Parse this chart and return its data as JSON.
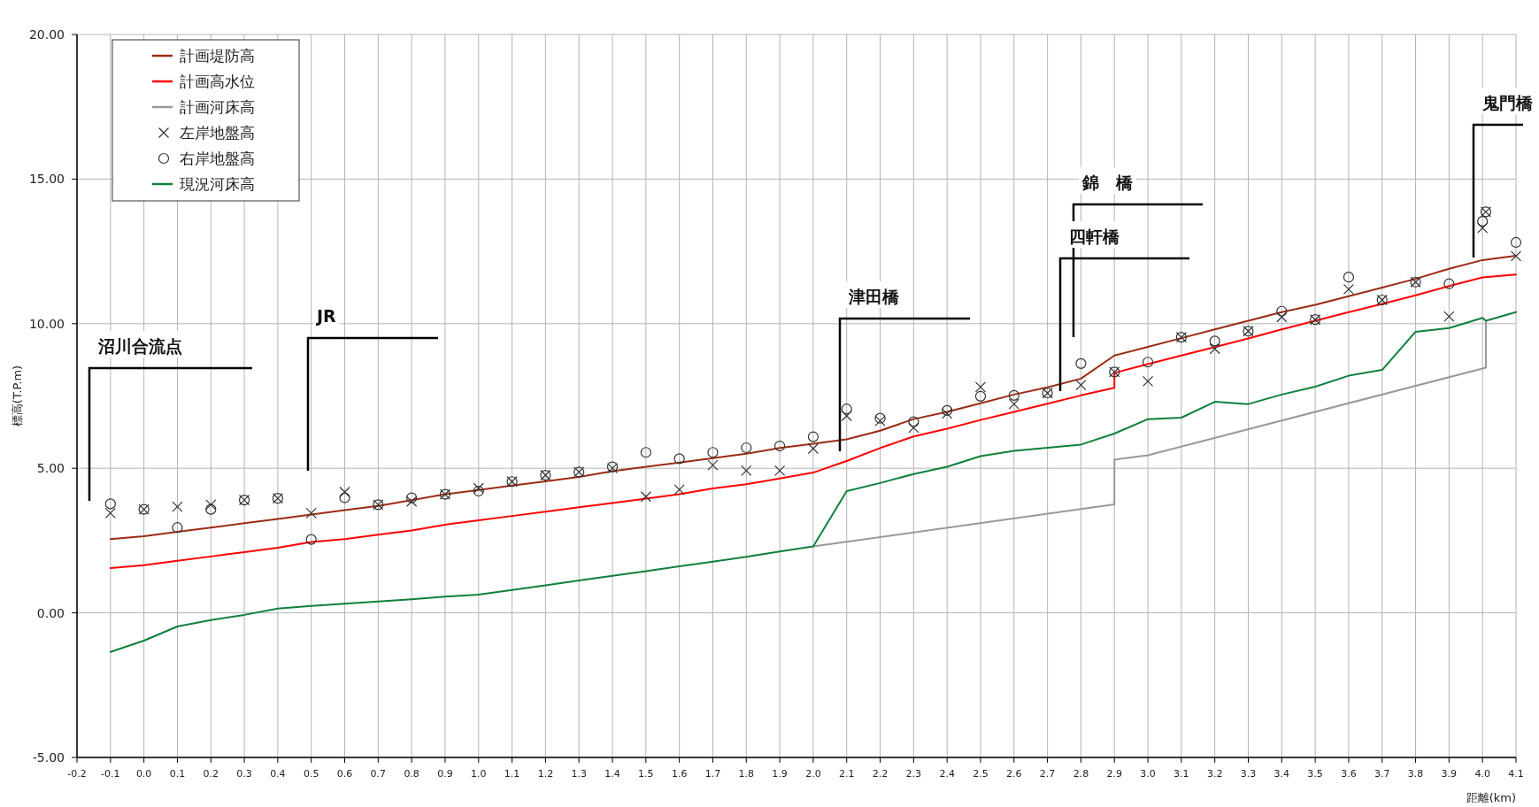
{
  "chart_data": {
    "type": "line",
    "xlabel": "距離(km)",
    "ylabel": "標高(T.P.m)",
    "xlim": [
      -0.2,
      4.1
    ],
    "ylim": [
      -5,
      20
    ],
    "xticks": [
      {
        "value": -0.2,
        "label": "-0.2"
      },
      {
        "value": -0.1,
        "label": "-0.1"
      },
      {
        "value": 0,
        "label": "0.0"
      },
      {
        "value": 0.1,
        "label": "0.1"
      },
      {
        "value": 0.2,
        "label": "0.2"
      },
      {
        "value": 0.3,
        "label": "0.3"
      },
      {
        "value": 0.4,
        "label": "0.4"
      },
      {
        "value": 0.5,
        "label": "0.5"
      },
      {
        "value": 0.6,
        "label": "0.6"
      },
      {
        "value": 0.7,
        "label": "0.7"
      },
      {
        "value": 0.8,
        "label": "0.8"
      },
      {
        "value": 0.9,
        "label": "0.9"
      },
      {
        "value": 1,
        "label": "1.0"
      },
      {
        "value": 1.1,
        "label": "1.1"
      },
      {
        "value": 1.2,
        "label": "1.2"
      },
      {
        "value": 1.3,
        "label": "1.3"
      },
      {
        "value": 1.4,
        "label": "1.4"
      },
      {
        "value": 1.5,
        "label": "1.5"
      },
      {
        "value": 1.6,
        "label": "1.6"
      },
      {
        "value": 1.7,
        "label": "1.7"
      },
      {
        "value": 1.8,
        "label": "1.8"
      },
      {
        "value": 1.9,
        "label": "1.9"
      },
      {
        "value": 2,
        "label": "2.0"
      },
      {
        "value": 2.1,
        "label": "2.1"
      },
      {
        "value": 2.2,
        "label": "2.2"
      },
      {
        "value": 2.3,
        "label": "2.3"
      },
      {
        "value": 2.4,
        "label": "2.4"
      },
      {
        "value": 2.5,
        "label": "2.5"
      },
      {
        "value": 2.6,
        "label": "2.6"
      },
      {
        "value": 2.7,
        "label": "2.7"
      },
      {
        "value": 2.8,
        "label": "2.8"
      },
      {
        "value": 2.9,
        "label": "2.9"
      },
      {
        "value": 3,
        "label": "3.0"
      },
      {
        "value": 3.1,
        "label": "3.1"
      },
      {
        "value": 3.2,
        "label": "3.2"
      },
      {
        "value": 3.3,
        "label": "3.3"
      },
      {
        "value": 3.4,
        "label": "3.4"
      },
      {
        "value": 3.5,
        "label": "3.5"
      },
      {
        "value": 3.6,
        "label": "3.6"
      },
      {
        "value": 3.7,
        "label": "3.7"
      },
      {
        "value": 3.8,
        "label": "3.8"
      },
      {
        "value": 3.9,
        "label": "3.9"
      },
      {
        "value": 4,
        "label": "4.0"
      },
      {
        "value": 4.1,
        "label": "4.1"
      }
    ],
    "yticks": [
      {
        "value": -5,
        "label": "-5.00"
      },
      {
        "value": 0,
        "label": "0.00"
      },
      {
        "value": 5,
        "label": "5.00"
      },
      {
        "value": 10,
        "label": "10.00"
      },
      {
        "value": 15,
        "label": "15.00"
      },
      {
        "value": 20,
        "label": "20.00"
      }
    ],
    "grid": true,
    "legend": "top left",
    "series": [
      {
        "name": "計画堤防高",
        "color": "#9b2c14",
        "marker": "none",
        "x": [
          -0.1,
          0,
          0.1,
          0.2,
          0.3,
          0.4,
          0.5,
          0.6,
          0.7,
          0.8,
          0.9,
          1,
          1.1,
          1.2,
          1.3,
          1.4,
          1.5,
          1.6,
          1.7,
          1.8,
          1.9,
          2,
          2.1,
          2.2,
          2.3,
          2.4,
          2.5,
          2.6,
          2.7,
          2.8,
          2.9,
          3,
          3.1,
          3.2,
          3.3,
          3.4,
          3.5,
          3.6,
          3.7,
          3.8,
          3.9,
          4,
          4.1
        ],
        "values": [
          2.55,
          2.65,
          2.8,
          2.95,
          3.1,
          3.25,
          3.4,
          3.55,
          3.7,
          3.9,
          4.1,
          4.25,
          4.4,
          4.55,
          4.7,
          4.9,
          5.05,
          5.2,
          5.35,
          5.5,
          5.7,
          5.85,
          6.0,
          6.3,
          6.7,
          6.95,
          7.25,
          7.55,
          7.8,
          8.1,
          8.9,
          9.2,
          9.5,
          9.8,
          10.1,
          10.4,
          10.65,
          10.95,
          11.25,
          11.55,
          11.9,
          12.2,
          12.35
        ]
      },
      {
        "name": "計画高水位",
        "color": "#ff0000",
        "marker": "none",
        "x": [
          -0.1,
          0,
          0.1,
          0.2,
          0.3,
          0.4,
          0.5,
          0.6,
          0.7,
          0.8,
          0.9,
          1,
          1.1,
          1.2,
          1.3,
          1.4,
          1.5,
          1.6,
          1.7,
          1.8,
          1.9,
          2,
          2.1,
          2.2,
          2.3,
          2.4,
          2.5,
          2.6,
          2.7,
          2.8,
          2.9,
          2.9,
          3,
          3.1,
          3.2,
          3.3,
          3.4,
          3.5,
          3.6,
          3.7,
          3.8,
          3.9,
          4,
          4.1
        ],
        "values": [
          1.55,
          1.65,
          1.8,
          1.95,
          2.1,
          2.25,
          2.45,
          2.55,
          2.7,
          2.85,
          3.05,
          3.2,
          3.35,
          3.5,
          3.65,
          3.8,
          3.95,
          4.1,
          4.3,
          4.45,
          4.65,
          4.85,
          5.25,
          5.7,
          6.1,
          6.37,
          6.67,
          6.95,
          7.23,
          7.52,
          7.78,
          8.3,
          8.6,
          8.9,
          9.19,
          9.49,
          9.8,
          10.1,
          10.4,
          10.68,
          10.98,
          11.3,
          11.6,
          11.7
        ]
      },
      {
        "name": "計画河床高",
        "color": "#999999",
        "marker": "none",
        "x": [
          2,
          2.9,
          2.9,
          3,
          4.01,
          4.01
        ],
        "values": [
          2.3,
          3.75,
          5.3,
          5.45,
          8.48,
          10.1
        ]
      },
      {
        "name": "左岸地盤高",
        "type": "scatter",
        "color": "#333333",
        "marker": "cross",
        "x": [
          -0.1,
          0,
          0.1,
          0.2,
          0.3,
          0.4,
          0.5,
          0.6,
          0.7,
          0.8,
          0.9,
          1,
          1.1,
          1.2,
          1.3,
          1.4,
          1.5,
          1.6,
          1.7,
          1.8,
          1.9,
          2,
          2.1,
          2.2,
          2.3,
          2.4,
          2.5,
          2.6,
          2.7,
          2.8,
          2.9,
          3,
          3.1,
          3.2,
          3.3,
          3.4,
          3.5,
          3.6,
          3.7,
          3.8,
          3.9,
          4,
          4.01,
          4.1
        ],
        "values": [
          3.45,
          3.58,
          3.67,
          3.74,
          3.9,
          3.96,
          3.45,
          4.18,
          3.74,
          3.85,
          4.1,
          4.31,
          4.54,
          4.76,
          4.87,
          5.0,
          4.02,
          4.26,
          5.11,
          4.92,
          4.92,
          5.68,
          6.81,
          6.64,
          6.4,
          6.89,
          7.81,
          7.22,
          7.6,
          7.88,
          8.33,
          8.01,
          9.53,
          9.13,
          9.74,
          10.23,
          10.14,
          11.19,
          10.82,
          11.44,
          10.25,
          13.31,
          13.87,
          12.34
        ]
      },
      {
        "name": "右岸地盤高",
        "type": "scatter",
        "color": "#333333",
        "marker": "circle",
        "x": [
          -0.1,
          0,
          0.1,
          0.2,
          0.3,
          0.4,
          0.5,
          0.6,
          0.7,
          0.8,
          0.9,
          1,
          1.1,
          1.2,
          1.3,
          1.4,
          1.5,
          1.6,
          1.7,
          1.8,
          1.9,
          2,
          2.1,
          2.2,
          2.3,
          2.4,
          2.5,
          2.6,
          2.7,
          2.8,
          2.9,
          3,
          3.1,
          3.2,
          3.3,
          3.4,
          3.5,
          3.6,
          3.7,
          3.8,
          3.9,
          4,
          4.01,
          4.1
        ],
        "values": [
          3.77,
          3.58,
          2.95,
          3.58,
          3.9,
          3.96,
          2.54,
          3.98,
          3.74,
          3.98,
          4.1,
          4.21,
          4.54,
          4.76,
          4.87,
          5.05,
          5.55,
          5.33,
          5.55,
          5.71,
          5.77,
          6.09,
          7.05,
          6.73,
          6.61,
          7.0,
          7.49,
          7.52,
          7.6,
          8.62,
          8.33,
          8.67,
          9.53,
          9.4,
          9.74,
          10.43,
          10.14,
          11.61,
          10.82,
          11.44,
          11.38,
          13.54,
          13.87,
          12.81
        ]
      },
      {
        "name": "現況河床高",
        "color": "#10803c",
        "marker": "none",
        "x": [
          -0.1,
          0,
          0.1,
          0.2,
          0.3,
          0.4,
          0.5,
          0.6,
          0.7,
          0.8,
          0.9,
          1,
          1.1,
          1.2,
          1.3,
          1.4,
          1.5,
          1.6,
          1.7,
          1.8,
          1.9,
          2,
          2.1,
          2.2,
          2.3,
          2.4,
          2.5,
          2.6,
          2.7,
          2.8,
          2.9,
          3,
          3.1,
          3.2,
          3.3,
          3.4,
          3.5,
          3.6,
          3.7,
          3.8,
          3.9,
          4,
          4.01,
          4.1
        ],
        "values": [
          -1.35,
          -0.96,
          -0.47,
          -0.25,
          -0.07,
          0.15,
          0.24,
          0.32,
          0.39,
          0.47,
          0.56,
          0.63,
          0.79,
          0.95,
          1.12,
          1.28,
          1.44,
          1.61,
          1.77,
          1.94,
          2.12,
          2.3,
          4.21,
          4.49,
          4.8,
          5.05,
          5.42,
          5.6,
          5.71,
          5.82,
          6.2,
          6.7,
          6.75,
          7.3,
          7.22,
          7.55,
          7.82,
          8.2,
          8.4,
          9.72,
          9.85,
          10.2,
          10.1,
          10.4
        ]
      }
    ],
    "annotations": [
      "沼川合流点",
      "JR",
      "津田橋",
      "四軒橋",
      "錦　橋",
      "鬼門橋"
    ]
  }
}
